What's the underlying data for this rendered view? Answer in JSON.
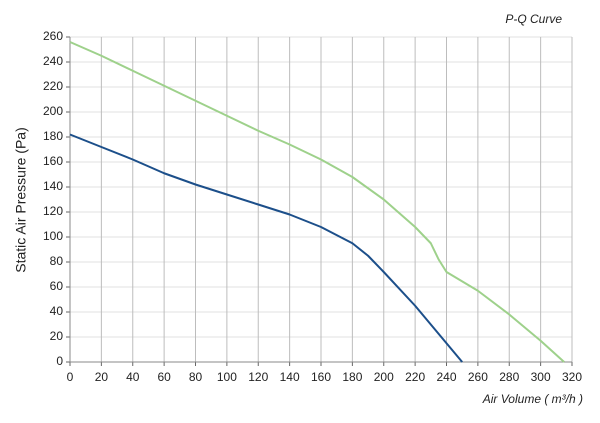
{
  "chart_data": {
    "type": "line",
    "title": "P-Q Curve",
    "x_label": "Air Volume ( m³/h )",
    "y_label": "Static Air Pressure  (Pa)",
    "xlim": [
      0,
      320
    ],
    "xticks": [
      0,
      20,
      40,
      60,
      80,
      100,
      120,
      140,
      160,
      180,
      200,
      220,
      240,
      260,
      280,
      300,
      320
    ],
    "ylim": [
      0,
      260
    ],
    "yticks": [
      0,
      20,
      40,
      60,
      80,
      100,
      120,
      140,
      160,
      180,
      200,
      220,
      240,
      260
    ],
    "grid": true,
    "series": [
      {
        "color": "#1c4f8a",
        "x": [
          0,
          20,
          40,
          60,
          80,
          100,
          120,
          140,
          160,
          180,
          190,
          200,
          220,
          240,
          250
        ],
        "values": [
          182,
          172,
          162,
          151,
          142,
          134,
          126,
          118,
          108,
          95,
          85,
          72,
          45,
          15,
          0
        ]
      },
      {
        "color": "#9ed18b",
        "x": [
          0,
          20,
          40,
          60,
          80,
          100,
          120,
          140,
          160,
          180,
          200,
          220,
          230,
          235,
          240,
          260,
          280,
          300,
          315
        ],
        "values": [
          256,
          245,
          233,
          221,
          209,
          197,
          185,
          174,
          162,
          148,
          130,
          108,
          95,
          82,
          72,
          57,
          38,
          17,
          0
        ]
      }
    ]
  }
}
